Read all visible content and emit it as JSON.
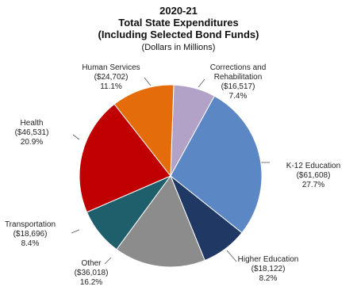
{
  "chart_data": {
    "type": "pie",
    "title": "2020-21",
    "subtitle": "Total State Expenditures",
    "subtitle2": "(Including Selected Bond Funds)",
    "units_note": "(Dollars in Millions)",
    "categories": [
      "Corrections and Rehabilitation",
      "K-12 Education",
      "Higher Education",
      "Other",
      "Transportation",
      "Health",
      "Human Services"
    ],
    "values": [
      16517,
      61608,
      18122,
      36018,
      18696,
      46531,
      24702
    ],
    "value_labels": [
      "($16,517)",
      "($61,608)",
      "($18,122)",
      "($36,018)",
      "($18,696)",
      "($46,531)",
      "($24,702)"
    ],
    "percents": [
      7.4,
      27.7,
      8.2,
      16.2,
      8.4,
      20.9,
      11.1
    ],
    "percent_labels": [
      "7.4%",
      "27.7%",
      "8.2%",
      "16.2%",
      "8.4%",
      "20.9%",
      "11.1%"
    ],
    "colors": [
      "#b3a2c7",
      "#5b87c4",
      "#1f3864",
      "#8c8c8c",
      "#1f5f6b",
      "#c00000",
      "#e46c0a"
    ]
  }
}
